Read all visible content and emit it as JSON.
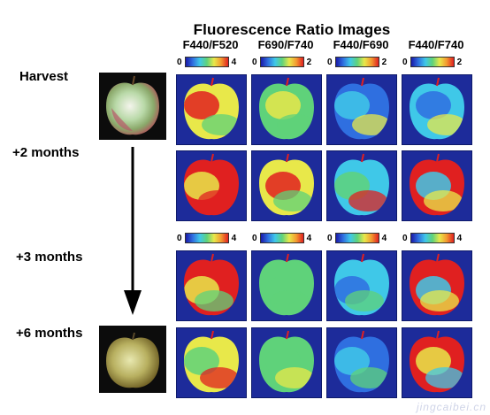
{
  "figure": {
    "title": "Fluorescence Ratio Images",
    "columns": [
      "F440/F520",
      "F690/F740",
      "F440/F690",
      "F440/F740"
    ],
    "rows": [
      "Harvest",
      "+2 months",
      "+3 months",
      "+6 months"
    ],
    "scales_top": [
      {
        "min": "0",
        "max": "4"
      },
      {
        "min": "0",
        "max": "2"
      },
      {
        "min": "0",
        "max": "2"
      },
      {
        "min": "0",
        "max": "2"
      }
    ],
    "scales_mid": [
      {
        "min": "0",
        "max": "4"
      },
      {
        "min": "0",
        "max": "4"
      },
      {
        "min": "0",
        "max": "4"
      },
      {
        "min": "0",
        "max": "4"
      }
    ],
    "watermark": "jingcaibei.cn"
  },
  "colors": {
    "background_tile": "#1d2b9a",
    "red": "#e02020",
    "yellow": "#e8e84a",
    "green": "#5fd27a",
    "cyan": "#3fc8e8",
    "blue": "#2f6fe0"
  }
}
